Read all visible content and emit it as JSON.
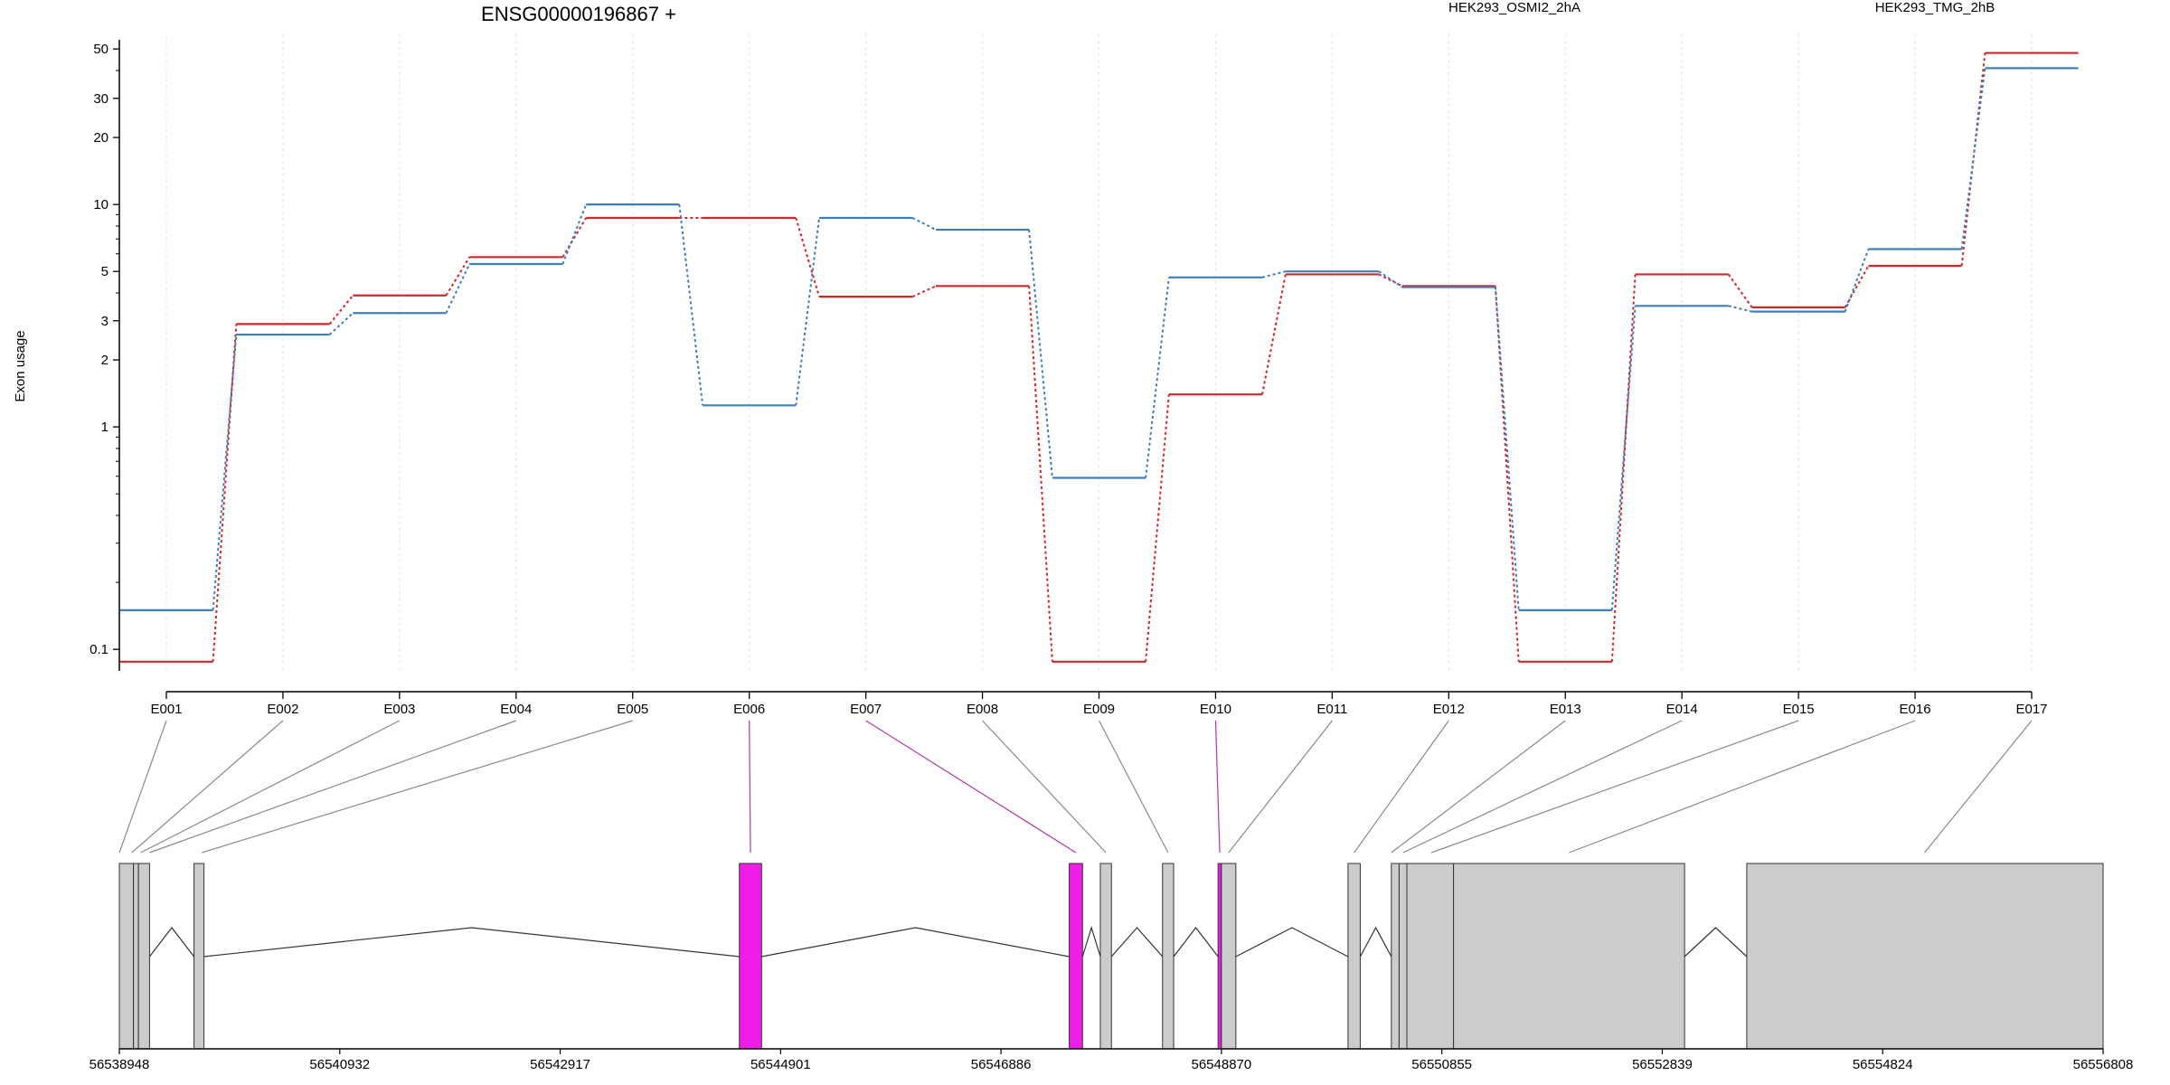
{
  "chart_data": {
    "type": "line",
    "title": "ENSG00000196867 +",
    "ylabel": "Exon usage",
    "xlabel": "",
    "y_scale": "log",
    "ylim": [
      0.08,
      55
    ],
    "y_ticks": [
      0.1,
      1,
      2,
      3,
      5,
      10,
      20,
      30,
      50
    ],
    "categories": [
      "E001",
      "E002",
      "E003",
      "E004",
      "E005",
      "E006",
      "E007",
      "E008",
      "E009",
      "E010",
      "E011",
      "E012",
      "E013",
      "E014",
      "E015",
      "E016",
      "E017"
    ],
    "series": [
      {
        "name": "HEK293_OSMI2_2hA",
        "color": "#d62728",
        "values": [
          0.088,
          2.9,
          3.9,
          5.8,
          8.7,
          8.7,
          3.85,
          4.3,
          0.088,
          1.4,
          4.85,
          4.3,
          0.088,
          4.85,
          3.45,
          5.3,
          48
        ]
      },
      {
        "name": "HEK293_TMG_2hB",
        "color": "#3f7fb9",
        "values": [
          0.15,
          2.6,
          3.25,
          5.4,
          10.0,
          1.25,
          8.7,
          7.7,
          0.59,
          4.7,
          5.0,
          4.25,
          0.15,
          3.5,
          3.3,
          6.3,
          41
        ]
      }
    ],
    "legend_placement": "top",
    "grid": "vertical dotted",
    "gene_model": {
      "coordinate_ticks": [
        "56538948",
        "56540932",
        "56542917",
        "56544901",
        "56546886",
        "56548870",
        "56550855",
        "56552839",
        "56554824",
        "56556808"
      ],
      "coord_range": [
        56538948,
        56556808
      ],
      "exon_color_default": "#cccccc",
      "exon_color_highlight": "#ee1ee6",
      "exons": [
        {
          "start": 56538948,
          "end": 56539075,
          "highlight": false
        },
        {
          "start": 56539075,
          "end": 56539120,
          "highlight": false
        },
        {
          "start": 56539120,
          "end": 56539220,
          "highlight": false
        },
        {
          "start": 56539620,
          "end": 56539710,
          "highlight": false
        },
        {
          "start": 56544530,
          "end": 56544730,
          "highlight": true
        },
        {
          "start": 56547500,
          "end": 56547620,
          "highlight": true
        },
        {
          "start": 56547780,
          "end": 56547880,
          "highlight": false
        },
        {
          "start": 56548340,
          "end": 56548440,
          "highlight": false
        },
        {
          "start": 56548840,
          "end": 56548870,
          "highlight": true
        },
        {
          "start": 56548870,
          "end": 56549000,
          "highlight": false
        },
        {
          "start": 56550010,
          "end": 56550120,
          "highlight": false
        },
        {
          "start": 56550400,
          "end": 56550470,
          "highlight": false
        },
        {
          "start": 56550470,
          "end": 56550540,
          "highlight": false
        },
        {
          "start": 56550540,
          "end": 56550960,
          "highlight": false
        },
        {
          "start": 56550960,
          "end": 56553040,
          "highlight": false
        },
        {
          "start": 56553600,
          "end": 56556808,
          "highlight": false
        }
      ],
      "exon_map_targets": [
        {
          "pos": 56538948,
          "highlight": false
        },
        {
          "pos": 56539060,
          "highlight": false
        },
        {
          "pos": 56539140,
          "highlight": false
        },
        {
          "pos": 56539220,
          "highlight": false
        },
        {
          "pos": 56539690,
          "highlight": false
        },
        {
          "pos": 56544630,
          "highlight": true
        },
        {
          "pos": 56547560,
          "highlight": true
        },
        {
          "pos": 56547830,
          "highlight": false
        },
        {
          "pos": 56548390,
          "highlight": false
        },
        {
          "pos": 56548855,
          "highlight": true
        },
        {
          "pos": 56548935,
          "highlight": false
        },
        {
          "pos": 56550065,
          "highlight": false
        },
        {
          "pos": 56550400,
          "highlight": false
        },
        {
          "pos": 56550505,
          "highlight": false
        },
        {
          "pos": 56550760,
          "highlight": false
        },
        {
          "pos": 56552000,
          "highlight": false
        },
        {
          "pos": 56555200,
          "highlight": false
        }
      ]
    }
  }
}
